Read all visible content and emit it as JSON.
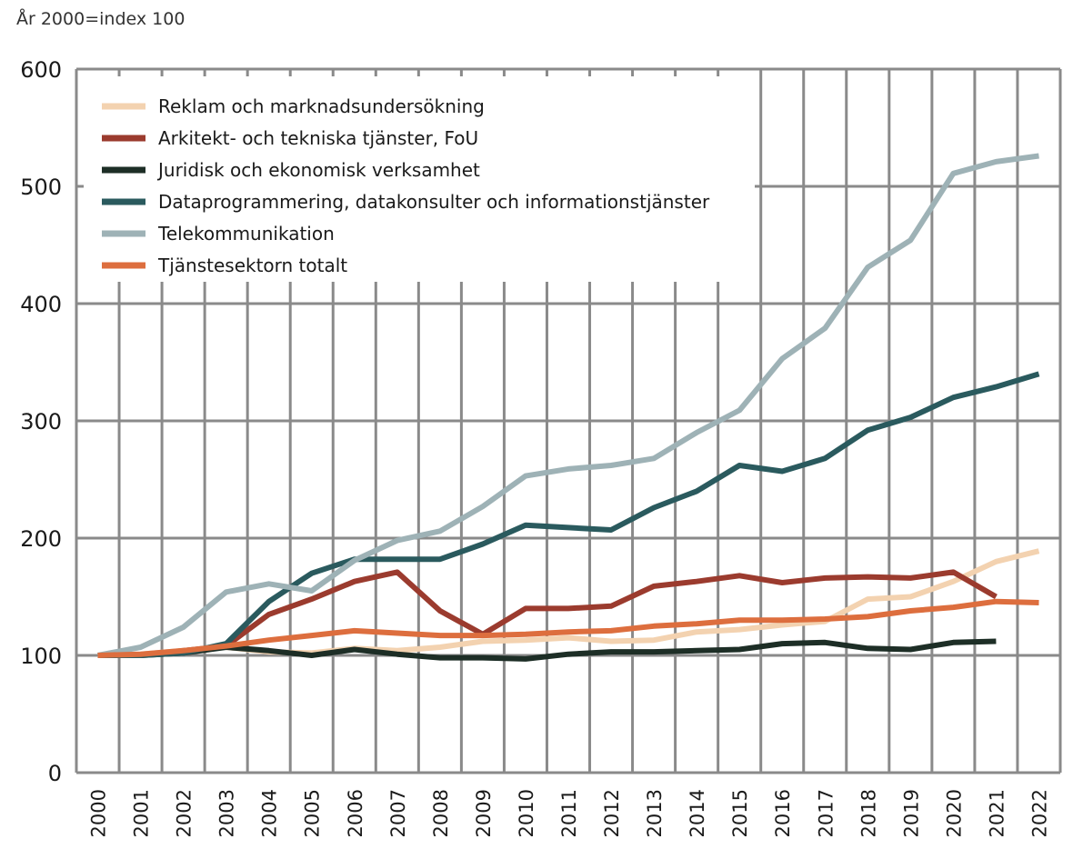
{
  "unit_label": "År 2000=index 100",
  "chart_data": {
    "type": "line",
    "title": "",
    "xlabel": "",
    "ylabel": "",
    "ylim": [
      0,
      600
    ],
    "yticks": [
      0,
      100,
      200,
      300,
      400,
      500,
      600
    ],
    "grid": true,
    "legend_position": "top-left",
    "x": [
      "2000",
      "2001",
      "2002",
      "2003",
      "2004",
      "2005",
      "2006",
      "2007",
      "2008",
      "2009",
      "2010",
      "2011",
      "2012",
      "2013",
      "2014",
      "2015",
      "2016",
      "2017",
      "2018",
      "2019",
      "2020",
      "2021",
      "2022"
    ],
    "series": [
      {
        "name": "Reklam och marknadsundersökning",
        "color": "#f3d2b0",
        "values": [
          100,
          101,
          104,
          107,
          103,
          102,
          106,
          104,
          107,
          112,
          113,
          115,
          112,
          113,
          120,
          122,
          126,
          129,
          148,
          150,
          163,
          180,
          189
        ]
      },
      {
        "name": "Arkitekt- och tekniska tjänster, FoU",
        "color": "#9b3b2e",
        "values": [
          100,
          100,
          104,
          108,
          135,
          148,
          163,
          171,
          138,
          118,
          140,
          140,
          142,
          159,
          163,
          168,
          162,
          166,
          167,
          166,
          171,
          150,
          null
        ]
      },
      {
        "name": "Juridisk och ekonomisk verksamhet",
        "color": "#1d2e26",
        "values": [
          100,
          100,
          102,
          107,
          104,
          100,
          105,
          101,
          98,
          98,
          97,
          101,
          103,
          103,
          104,
          105,
          110,
          111,
          106,
          105,
          111,
          112,
          null
        ]
      },
      {
        "name": "Dataprogrammering, datakonsulter och informationstjänster",
        "color": "#2a5a5e",
        "values": [
          100,
          100,
          102,
          110,
          146,
          170,
          182,
          182,
          182,
          195,
          211,
          209,
          207,
          226,
          240,
          262,
          257,
          268,
          292,
          303,
          320,
          329,
          340
        ]
      },
      {
        "name": "Telekommunikation",
        "color": "#9eb2b6",
        "values": [
          100,
          107,
          124,
          154,
          161,
          155,
          181,
          198,
          206,
          227,
          253,
          259,
          262,
          268,
          290,
          309,
          353,
          379,
          431,
          454,
          511,
          521,
          526
        ]
      },
      {
        "name": "Tjänstesektorn totalt",
        "color": "#dd6e3e",
        "values": [
          100,
          101,
          104,
          108,
          113,
          117,
          121,
          119,
          117,
          117,
          118,
          120,
          121,
          125,
          127,
          130,
          130,
          131,
          133,
          138,
          141,
          146,
          145
        ]
      }
    ]
  }
}
